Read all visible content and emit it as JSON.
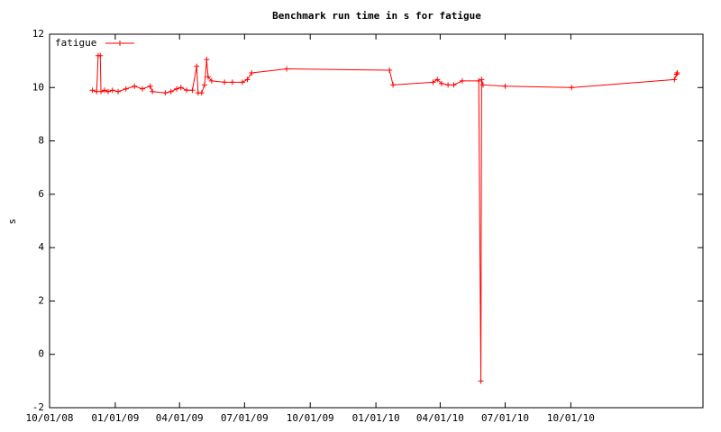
{
  "chart_data": {
    "type": "line",
    "title": "Benchmark run time in s for fatigue",
    "y_label": "s",
    "x": [
      "2008-11-30",
      "2008-12-06",
      "2008-12-08",
      "2008-12-11",
      "2008-12-12",
      "2008-12-17",
      "2008-12-22",
      "2008-12-28",
      "2009-01-05",
      "2009-01-16",
      "2009-01-28",
      "2009-02-08",
      "2009-02-19",
      "2009-02-22",
      "2009-03-12",
      "2009-03-20",
      "2009-03-28",
      "2009-04-03",
      "2009-04-11",
      "2009-04-19",
      "2009-04-25",
      "2009-04-27",
      "2009-05-02",
      "2009-05-06",
      "2009-05-09",
      "2009-05-11",
      "2009-05-16",
      "2009-06-03",
      "2009-06-14",
      "2009-06-28",
      "2009-07-05",
      "2009-07-11",
      "2009-08-29",
      "2010-01-20",
      "2010-01-25",
      "2010-03-22",
      "2010-03-28",
      "2010-04-03",
      "2010-04-12",
      "2010-04-20",
      "2010-05-02",
      "2010-05-25",
      "2010-05-28",
      "2010-05-29",
      "2010-05-31",
      "2010-07-01",
      "2010-10-02",
      "2011-02-23",
      "2011-02-26",
      "2011-02-27"
    ],
    "series": [
      {
        "name": "fatigue",
        "color": "#ff0000",
        "values": [
          9.9,
          9.85,
          11.2,
          11.2,
          9.85,
          9.9,
          9.85,
          9.9,
          9.85,
          9.95,
          10.05,
          9.95,
          10.05,
          9.85,
          9.8,
          9.85,
          9.95,
          10.0,
          9.9,
          9.9,
          10.8,
          9.8,
          9.8,
          10.1,
          11.05,
          10.4,
          10.25,
          10.2,
          10.2,
          10.2,
          10.3,
          10.55,
          10.7,
          10.65,
          10.1,
          10.2,
          10.3,
          10.15,
          10.1,
          10.1,
          10.25,
          10.25,
          -1,
          10.3,
          10.1,
          10.05,
          10.0,
          10.3,
          10.5,
          10.55
        ]
      }
    ],
    "xlim": [
      "2008-10-01",
      "2011-04-04"
    ],
    "xticks": [
      {
        "value": "2008-10-01",
        "label": "10/01/08"
      },
      {
        "value": "2009-01-01",
        "label": "01/01/09"
      },
      {
        "value": "2009-04-01",
        "label": "04/01/09"
      },
      {
        "value": "2009-07-01",
        "label": "07/01/09"
      },
      {
        "value": "2009-10-01",
        "label": "10/01/09"
      },
      {
        "value": "2010-01-01",
        "label": "01/01/10"
      },
      {
        "value": "2010-04-01",
        "label": "04/01/10"
      },
      {
        "value": "2010-07-01",
        "label": "07/01/10"
      },
      {
        "value": "2010-10-01",
        "label": "10/01/10"
      }
    ],
    "ylim": [
      -2,
      12
    ],
    "yticks": [
      -2,
      0,
      2,
      4,
      6,
      8,
      10,
      12
    ],
    "legend": "top-left",
    "grid": false
  }
}
